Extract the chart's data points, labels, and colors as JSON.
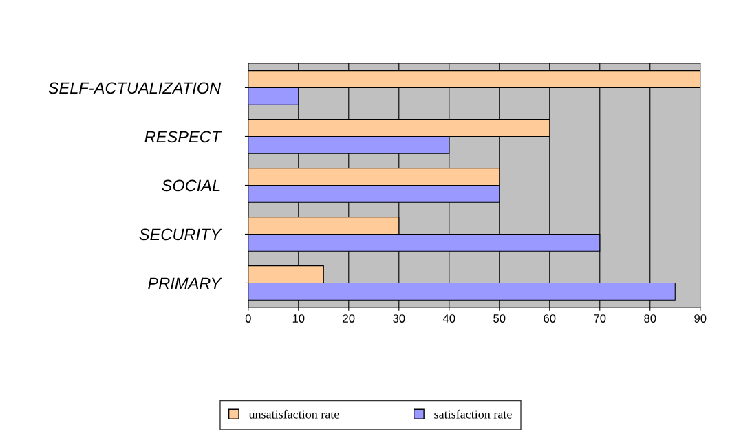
{
  "chart_data": {
    "type": "bar",
    "orientation": "horizontal",
    "categories": [
      "SELF-ACTUALIZATION",
      "RESPECT",
      "SOCIAL",
      "SECURITY",
      "PRIMARY"
    ],
    "series": [
      {
        "name": "unsatisfaction rate",
        "color": "#ffcc99",
        "values": [
          90,
          60,
          50,
          30,
          15
        ]
      },
      {
        "name": "satisfaction rate",
        "color": "#9999ff",
        "values": [
          10,
          40,
          50,
          70,
          85
        ]
      }
    ],
    "xlim": [
      0,
      90
    ],
    "xticks": [
      0,
      10,
      20,
      30,
      40,
      50,
      60,
      70,
      80,
      90
    ],
    "grid": "x",
    "legend": "bottom"
  }
}
